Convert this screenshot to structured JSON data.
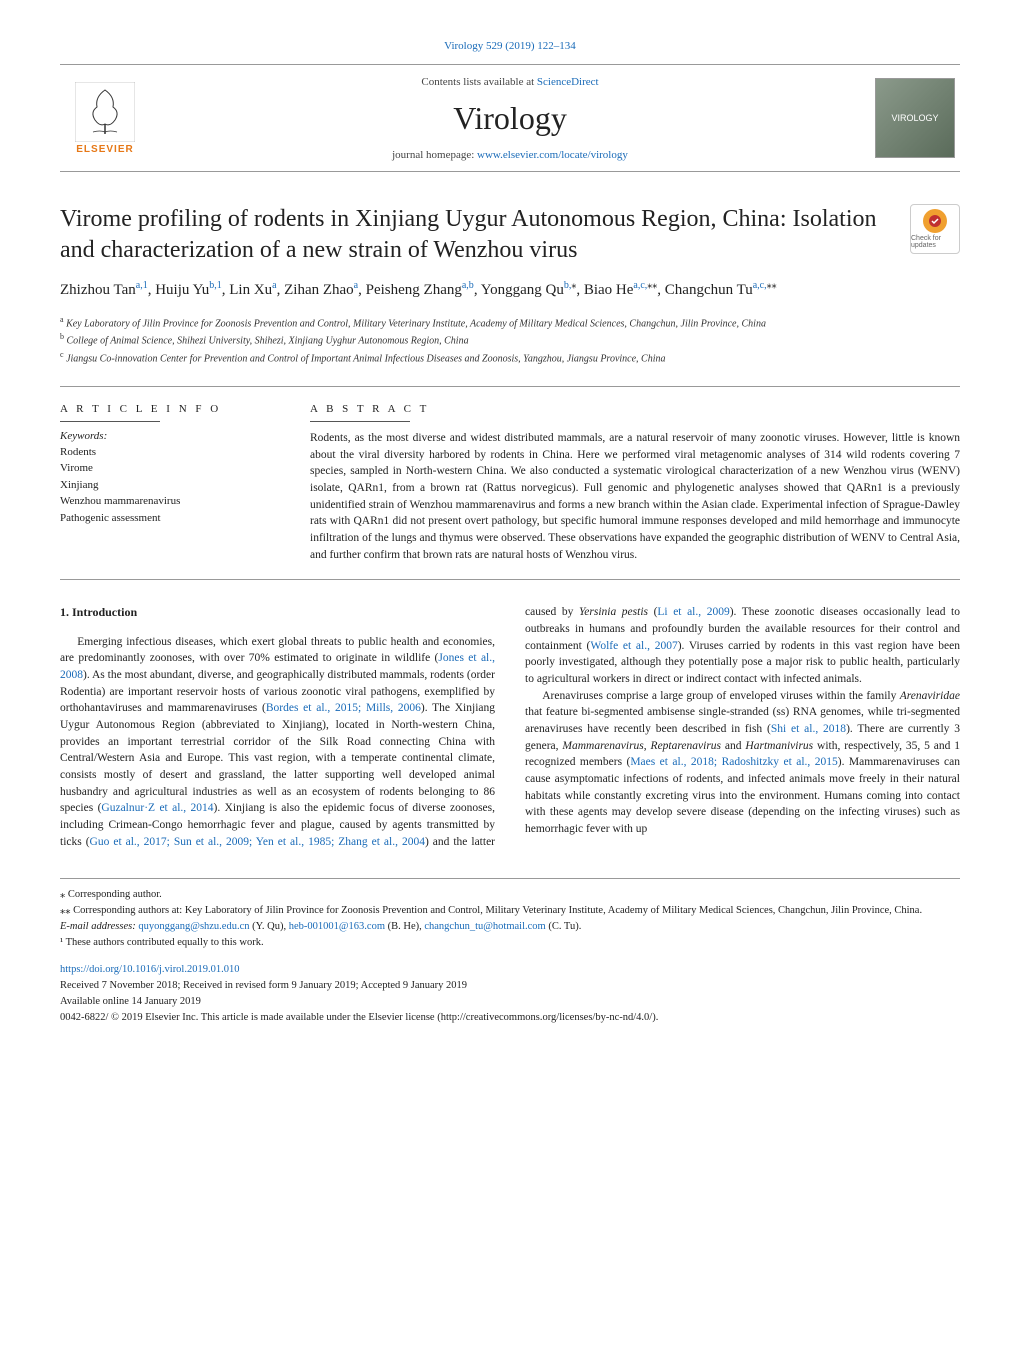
{
  "header": {
    "top_link": "Virology 529 (2019) 122–134",
    "contents_line_prefix": "Contents lists available at ",
    "contents_line_link": "ScienceDirect",
    "journal_name": "Virology",
    "homepage_prefix": "journal homepage: ",
    "homepage_link": "www.elsevier.com/locate/virology",
    "publisher_name": "ELSEVIER",
    "right_logo_text": "VIROLOGY"
  },
  "article": {
    "title": "Virome profiling of rodents in Xinjiang Uygur Autonomous Region, China: Isolation and characterization of a new strain of Wenzhou virus",
    "check_updates_label": "Check for updates",
    "authors_html": "Zhizhou Tan<sup>a,1</sup>, Huiju Yu<sup>b,1</sup>, Lin Xu<sup>a</sup>, Zihan Zhao<sup>a</sup>, Peisheng Zhang<sup>a,b</sup>, Yonggang Qu<sup>b,</sup><sup class='sup-dark'>⁎</sup>, Biao He<sup>a,c,</sup><sup class='sup-dark'>⁎⁎</sup>, Changchun Tu<sup>a,c,</sup><sup class='sup-dark'>⁎⁎</sup>",
    "affiliations": {
      "a": "Key Laboratory of Jilin Province for Zoonosis Prevention and Control, Military Veterinary Institute, Academy of Military Medical Sciences, Changchun, Jilin Province, China",
      "b": "College of Animal Science, Shihezi University, Shihezi, Xinjiang Uyghur Autonomous Region, China",
      "c": "Jiangsu Co-innovation Center for Prevention and Control of Important Animal Infectious Diseases and Zoonosis, Yangzhou, Jiangsu Province, China"
    }
  },
  "info": {
    "heading": "A R T I C L E  I N F O",
    "keywords_label": "Keywords:",
    "keywords": [
      "Rodents",
      "Virome",
      "Xinjiang",
      "Wenzhou mammarenavirus",
      "Pathogenic assessment"
    ]
  },
  "abstract": {
    "heading": "A B S T R A C T",
    "text": "Rodents, as the most diverse and widest distributed mammals, are a natural reservoir of many zoonotic viruses. However, little is known about the viral diversity harbored by rodents in China. Here we performed viral metagenomic analyses of 314 wild rodents covering 7 species, sampled in North-western China. We also conducted a systematic virological characterization of a new Wenzhou virus (WENV) isolate, QARn1, from a brown rat (Rattus norvegicus). Full genomic and phylogenetic analyses showed that QARn1 is a previously unidentified strain of Wenzhou mammarenavirus and forms a new branch within the Asian clade. Experimental infection of Sprague-Dawley rats with QARn1 did not present overt pathology, but specific humoral immune responses developed and mild hemorrhage and immunocyte infiltration of the lungs and thymus were observed. These observations have expanded the geographic distribution of WENV to Central Asia, and further confirm that brown rats are natural hosts of Wenzhou virus."
  },
  "body": {
    "heading": "1. Introduction",
    "col1_p1_a": "Emerging infectious diseases, which exert global threats to public health and economies, are predominantly zoonoses, with over 70% estimated to originate in wildlife (",
    "col1_p1_link1": "Jones et al., 2008",
    "col1_p1_b": "). As the most abundant, diverse, and geographically distributed mammals, rodents (order Rodentia) are important reservoir hosts of various zoonotic viral pathogens, exemplified by orthohantaviruses and mammarenaviruses (",
    "col1_p1_link2": "Bordes et al., 2015; Mills, 2006",
    "col1_p1_c": "). The Xinjiang Uygur Autonomous Region (abbreviated to Xinjiang), located in North-western China, provides an important terrestrial corridor of the Silk Road connecting China with Central/Western Asia and Europe. This vast region, with a temperate continental climate, consists mostly of desert and grassland, the latter supporting well developed animal husbandry and agricultural industries as well as an ecosystem of rodents belonging to 86 species (",
    "col1_p1_link3": "Guzalnur·Z et al., 2014",
    "col1_p1_d": "). Xinjiang is also the epidemic focus of diverse zoonoses, including Crimean-Congo hemorrhagic fever and plague, caused by agents transmitted by ticks (",
    "col1_p1_link4": "Guo et al., 2017; Sun et al., 2009;",
    "col2_p1_link5": "Yen et al., 1985; Zhang et al., 2004",
    "col2_p1_a": ") and the latter caused by ",
    "col2_p1_italic": "Yersinia pestis",
    "col2_p1_b": " (",
    "col2_p1_link6": "Li et al., 2009",
    "col2_p1_c": "). These zoonotic diseases occasionally lead to outbreaks in humans and profoundly burden the available resources for their control and containment (",
    "col2_p1_link7": "Wolfe et al., 2007",
    "col2_p1_d": "). Viruses carried by rodents in this vast region have been poorly investigated, although they potentially pose a major risk to public health, particularly to agricultural workers in direct or indirect contact with infected animals.",
    "col2_p2_a": "Arenaviruses comprise a large group of enveloped viruses within the family ",
    "col2_p2_italic1": "Arenaviridae",
    "col2_p2_b": " that feature bi-segmented ambisense single-stranded (ss) RNA genomes, while tri-segmented arenaviruses have recently been described in fish (",
    "col2_p2_link1": "Shi et al., 2018",
    "col2_p2_c": "). There are currently 3 genera, ",
    "col2_p2_italic2": "Mammarenavirus",
    "col2_p2_d": ", ",
    "col2_p2_italic3": "Reptarenavirus",
    "col2_p2_e": " and ",
    "col2_p2_italic4": "Hartmanivirus",
    "col2_p2_f": " with, respectively, 35, 5 and 1 recognized members (",
    "col2_p2_link2": "Maes et al., 2018; Radoshitzky et al., 2015",
    "col2_p2_g": "). Mammarenaviruses can cause asymptomatic infections of rodents, and infected animals move freely in their natural habitats while constantly excreting virus into the environment. Humans coming into contact with these agents may develop severe disease (depending on the infecting viruses) such as hemorrhagic fever with up"
  },
  "footnotes": {
    "corr1": "⁎ Corresponding author.",
    "corr2": "⁎⁎ Corresponding authors at: Key Laboratory of Jilin Province for Zoonosis Prevention and Control, Military Veterinary Institute, Academy of Military Medical Sciences, Changchun, Jilin Province, China.",
    "emails_label": "E-mail addresses: ",
    "email1": "quyonggang@shzu.edu.cn",
    "email1_name": " (Y. Qu), ",
    "email2": "heb-001001@163.com",
    "email2_name": " (B. He), ",
    "email3": "changchun_tu@hotmail.com",
    "email3_name": " (C. Tu).",
    "equal": "¹ These authors contributed equally to this work."
  },
  "footer": {
    "doi": "https://doi.org/10.1016/j.virol.2019.01.010",
    "received": "Received 7 November 2018; Received in revised form 9 January 2019; Accepted 9 January 2019",
    "available": "Available online 14 January 2019",
    "copyright": "0042-6822/ © 2019 Elsevier Inc. This article is made available under the Elsevier license (http://creativecommons.org/licenses/by-nc-nd/4.0/)."
  },
  "colors": {
    "link": "#1a6bb8",
    "elsevier_orange": "#e67817",
    "text": "#222222",
    "rule": "#999999"
  }
}
